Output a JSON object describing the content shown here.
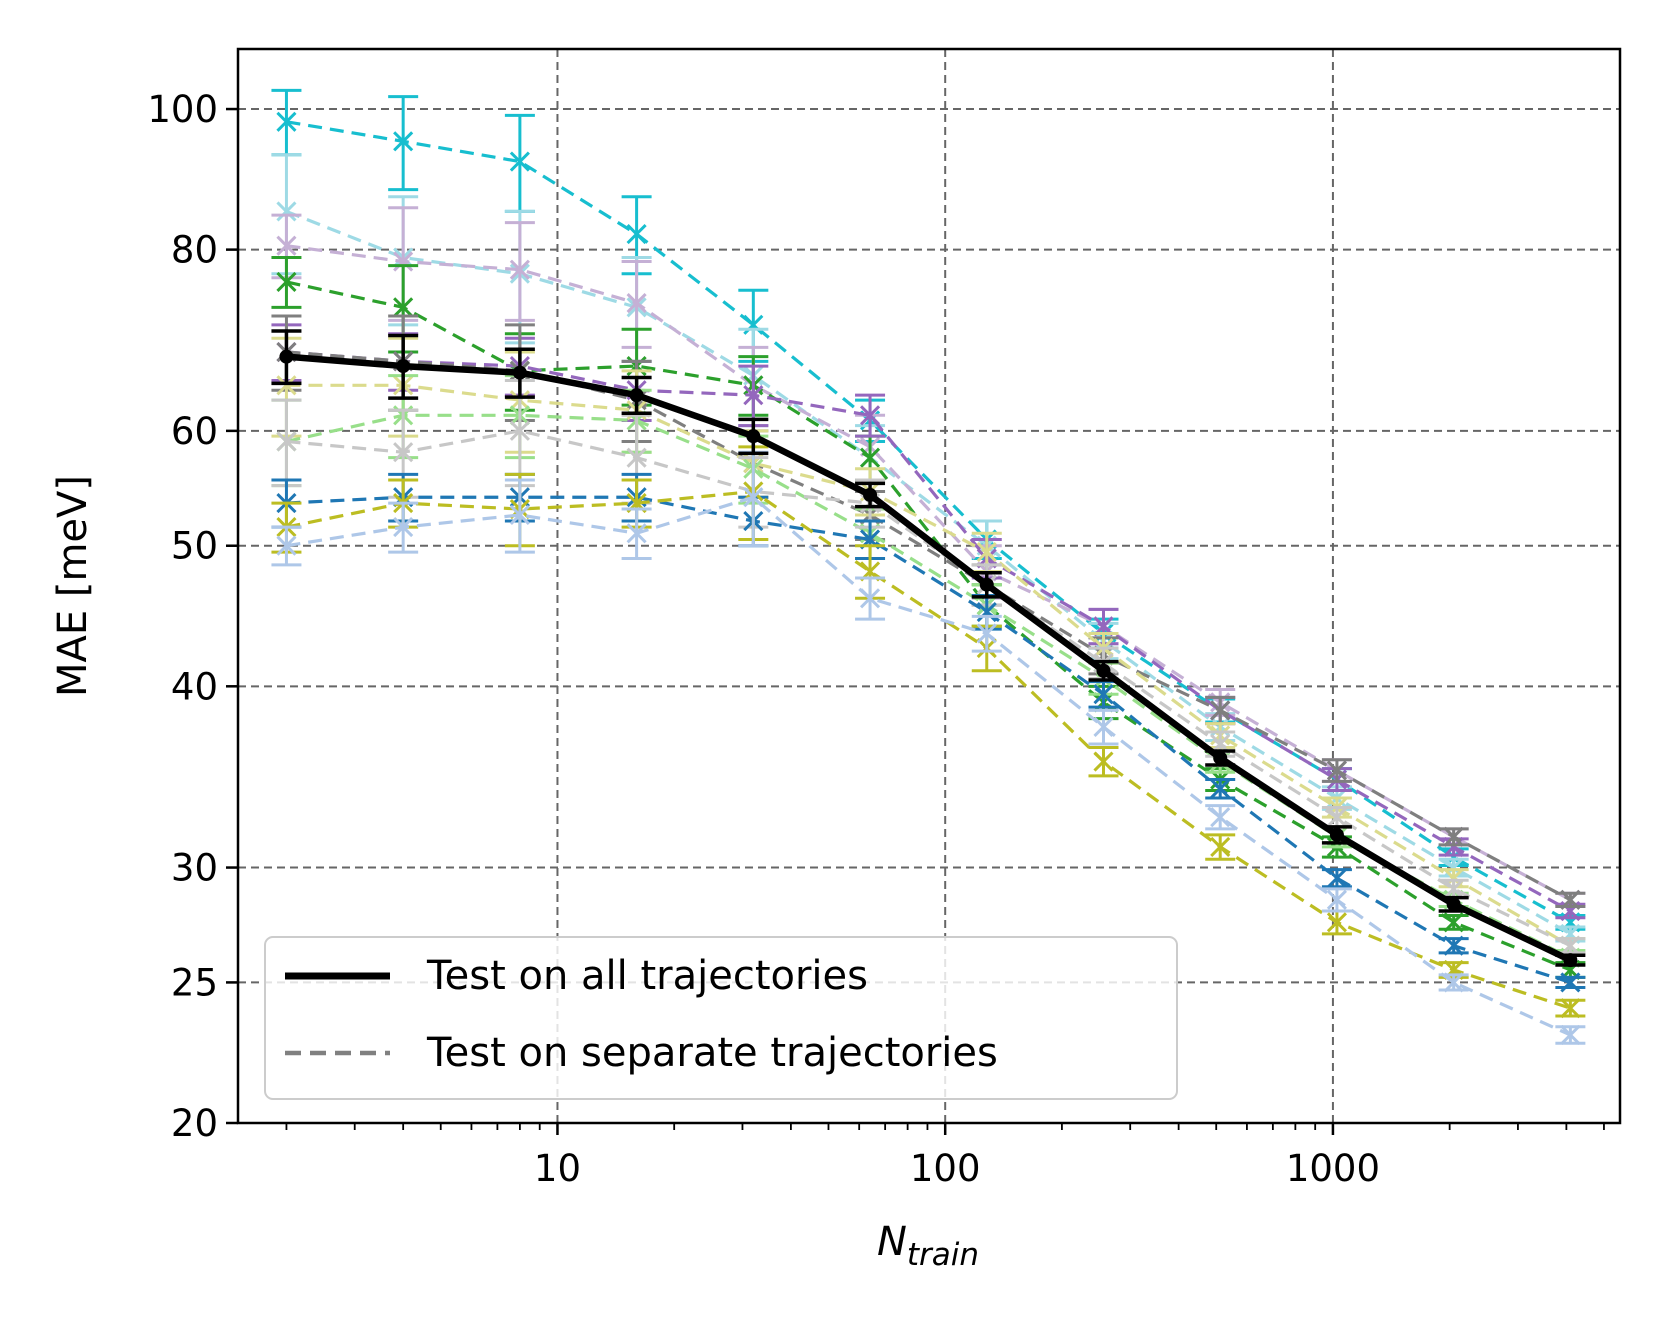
{
  "chart_data": {
    "type": "line",
    "title": "",
    "xlabel": "N",
    "xlabel_sub": "train",
    "ylabel": "MAE [meV]",
    "x_scale": "log",
    "y_scale": "log",
    "xlim": [
      1.5,
      5500
    ],
    "ylim": [
      20,
      110
    ],
    "grid": true,
    "x_ticks": [
      {
        "value": 10,
        "label": "10"
      },
      {
        "value": 100,
        "label": "100"
      },
      {
        "value": 1000,
        "label": "1000"
      }
    ],
    "y_ticks": [
      {
        "value": 20,
        "label": "20"
      },
      {
        "value": 25,
        "label": "25"
      },
      {
        "value": 30,
        "label": "30"
      },
      {
        "value": 40,
        "label": "40"
      },
      {
        "value": 50,
        "label": "50"
      },
      {
        "value": 60,
        "label": "60"
      },
      {
        "value": 80,
        "label": "80"
      },
      {
        "value": 100,
        "label": "100"
      }
    ],
    "x": [
      2,
      4,
      8,
      16,
      32,
      64,
      128,
      256,
      512,
      1024,
      2048,
      4096
    ],
    "main_series": {
      "name": "Test on all trajectories",
      "color": "#000000",
      "values": [
        67.5,
        66.5,
        65.8,
        63.5,
        59.5,
        54.2,
        47.0,
        41.0,
        35.7,
        31.6,
        28.3,
        25.9
      ],
      "errors": [
        2.8,
        3.3,
        2.5,
        1.8,
        1.6,
        1.0,
        0.9,
        0.6,
        0.4,
        0.4,
        0.3,
        0.2
      ]
    },
    "series": [
      {
        "name": "tab:cyan",
        "color": "#17becf",
        "values": [
          98,
          95,
          92,
          82,
          71,
          61,
          50.5,
          43.5,
          38.5,
          34.5,
          30.5,
          27.5
        ],
        "errors": [
          5,
          7,
          7,
          5,
          4,
          2,
          1.5,
          1.0,
          0.7,
          0.6,
          0.4,
          0.3
        ]
      },
      {
        "name": "light cyan",
        "color": "#9edae5",
        "values": [
          85,
          79,
          77,
          73,
          65.5,
          57.5,
          50,
          43,
          37.5,
          33.5,
          30,
          27
        ],
        "errors": [
          8,
          8,
          8,
          6,
          5,
          3,
          2,
          1.2,
          0.8,
          0.6,
          0.4,
          0.3
        ]
      },
      {
        "name": "light purple",
        "color": "#c5b0d5",
        "values": [
          80.5,
          78.5,
          77.5,
          73.5,
          64.5,
          58.5,
          48,
          44,
          39,
          35,
          31.5,
          28.5
        ],
        "errors": [
          4,
          7,
          6,
          5,
          4,
          3,
          2,
          1.2,
          0.8,
          0.6,
          0.4,
          0.3
        ]
      },
      {
        "name": "green",
        "color": "#2ca02c",
        "values": [
          76,
          73,
          66,
          66.5,
          64.5,
          57.5,
          45.5,
          39,
          34.5,
          31,
          27.5,
          25.5
        ],
        "errors": [
          3,
          5,
          4,
          4,
          3,
          2,
          1.5,
          1.0,
          0.6,
          0.5,
          0.3,
          0.3
        ]
      },
      {
        "name": "purple",
        "color": "#9467bd",
        "values": [
          68,
          67,
          66.5,
          64,
          63.5,
          61.5,
          49,
          44,
          38.5,
          34.5,
          31,
          28
        ],
        "errors": [
          3,
          3,
          3,
          3,
          3,
          2,
          1.5,
          1.2,
          0.8,
          0.6,
          0.4,
          0.3
        ]
      },
      {
        "name": "gray",
        "color": "#7f7f7f",
        "values": [
          68,
          67,
          66,
          63,
          57,
          52.5,
          47,
          42,
          38.5,
          35,
          31.5,
          28.5
        ],
        "errors": [
          4,
          5,
          5,
          4,
          3,
          2,
          1.5,
          1.2,
          0.8,
          0.6,
          0.4,
          0.3
        ]
      },
      {
        "name": "khaki",
        "color": "#dbdb8d",
        "values": [
          64.5,
          64.5,
          63,
          62,
          57,
          54.5,
          49.5,
          42.5,
          37,
          33,
          29.5,
          26.5
        ],
        "errors": [
          5,
          5,
          5,
          4,
          3,
          2,
          1.5,
          1.0,
          0.7,
          0.5,
          0.4,
          0.3
        ]
      },
      {
        "name": "light green",
        "color": "#98df8a",
        "values": [
          59,
          61.5,
          61.5,
          61,
          56.5,
          51,
          45.5,
          40.5,
          35.5,
          31.5,
          28.5,
          26
        ],
        "errors": [
          4,
          4,
          4,
          3,
          3,
          2,
          1.5,
          1.0,
          0.6,
          0.5,
          0.3,
          0.3
        ]
      },
      {
        "name": "light gray",
        "color": "#c7c7c7",
        "values": [
          59,
          58,
          60,
          57.5,
          54.5,
          53.5,
          47,
          41.5,
          36.5,
          32.5,
          29,
          26.5
        ],
        "errors": [
          4,
          4,
          5,
          4,
          3,
          2,
          1.5,
          1.0,
          0.7,
          0.5,
          0.4,
          0.3
        ]
      },
      {
        "name": "blue",
        "color": "#1f77b4",
        "values": [
          53.5,
          54,
          54,
          54,
          52,
          50.5,
          45,
          39.5,
          34,
          29.5,
          26.5,
          25
        ],
        "errors": [
          2,
          2,
          2,
          2,
          2,
          1.5,
          1.2,
          0.8,
          0.5,
          0.4,
          0.3,
          0.2
        ]
      },
      {
        "name": "olive",
        "color": "#bcbd22",
        "values": [
          51.5,
          53.5,
          53,
          53.5,
          54.5,
          48,
          42.5,
          35.5,
          31,
          27.5,
          25.5,
          24
        ],
        "errors": [
          2,
          2,
          3,
          2,
          4,
          2,
          1.5,
          0.8,
          0.6,
          0.5,
          0.3,
          0.3
        ]
      },
      {
        "name": "light blue",
        "color": "#aec7e8",
        "values": [
          50,
          51.5,
          52.5,
          51,
          54,
          46,
          43.5,
          37.5,
          32.5,
          28.5,
          25,
          23
        ],
        "errors": [
          1.5,
          2,
          3,
          2,
          4,
          1.5,
          1.2,
          1.0,
          0.6,
          0.5,
          0.3,
          0.3
        ]
      }
    ],
    "legend": {
      "position": "lower-left",
      "entries": [
        {
          "label": "Test on all trajectories",
          "style": "solid",
          "color": "#000000"
        },
        {
          "label": "Test on separate trajectories",
          "style": "dashed",
          "color": "#808080"
        }
      ]
    }
  }
}
